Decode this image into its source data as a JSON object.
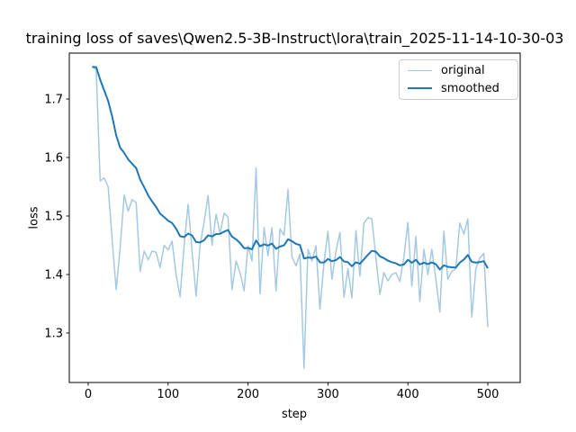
{
  "title": "training loss of saves\\Qwen2.5-3B-Instruct\\lora\\train_2025-11-14-10-30-03",
  "chart_data": {
    "type": "line",
    "title": "training loss of saves\\Qwen2.5-3B-Instruct\\lora\\train_2025-11-14-10-30-03",
    "xlabel": "step",
    "ylabel": "loss",
    "xlim": [
      -23,
      541
    ],
    "ylim": [
      1.215,
      1.778
    ],
    "x_ticks": [
      0,
      100,
      200,
      300,
      400,
      500
    ],
    "y_ticks": [
      1.3,
      1.4,
      1.5,
      1.6,
      1.7
    ],
    "grid": false,
    "legend_position": "upper right",
    "x": [
      5,
      10,
      15,
      20,
      25,
      30,
      35,
      40,
      45,
      50,
      55,
      60,
      65,
      70,
      75,
      80,
      85,
      90,
      95,
      100,
      105,
      110,
      115,
      120,
      125,
      130,
      135,
      140,
      145,
      150,
      155,
      160,
      165,
      170,
      175,
      180,
      185,
      190,
      195,
      200,
      205,
      210,
      215,
      220,
      225,
      230,
      235,
      240,
      245,
      250,
      255,
      260,
      265,
      270,
      275,
      280,
      285,
      290,
      295,
      300,
      305,
      310,
      315,
      320,
      325,
      330,
      335,
      340,
      345,
      350,
      355,
      360,
      365,
      370,
      375,
      380,
      385,
      390,
      395,
      400,
      405,
      410,
      415,
      420,
      425,
      430,
      435,
      440,
      445,
      450,
      455,
      460,
      465,
      470,
      475,
      480,
      485,
      490,
      495,
      500
    ],
    "series": [
      {
        "name": "original",
        "color": "#a5c9e1",
        "line_width": 1.5,
        "values": [
          1.755,
          1.75,
          1.56,
          1.565,
          1.55,
          1.46,
          1.374,
          1.446,
          1.536,
          1.508,
          1.528,
          1.523,
          1.405,
          1.44,
          1.425,
          1.44,
          1.438,
          1.412,
          1.45,
          1.442,
          1.457,
          1.4,
          1.362,
          1.45,
          1.52,
          1.44,
          1.363,
          1.45,
          1.49,
          1.535,
          1.45,
          1.503,
          1.47,
          1.505,
          1.498,
          1.374,
          1.423,
          1.403,
          1.372,
          1.449,
          1.423,
          1.582,
          1.367,
          1.48,
          1.432,
          1.48,
          1.372,
          1.478,
          1.467,
          1.545,
          1.43,
          1.415,
          1.435,
          1.24,
          1.443,
          1.423,
          1.449,
          1.341,
          1.42,
          1.474,
          1.392,
          1.44,
          1.472,
          1.361,
          1.41,
          1.36,
          1.475,
          1.397,
          1.488,
          1.497,
          1.495,
          1.428,
          1.366,
          1.403,
          1.389,
          1.4,
          1.403,
          1.388,
          1.43,
          1.489,
          1.38,
          1.465,
          1.354,
          1.443,
          1.4,
          1.443,
          1.392,
          1.336,
          1.474,
          1.392,
          1.405,
          1.41,
          1.488,
          1.469,
          1.495,
          1.327,
          1.41,
          1.428,
          1.436,
          1.31
        ]
      },
      {
        "name": "smoothed",
        "color": "#1f77b4",
        "line_width": 2,
        "derived_from": "original",
        "method": "exponential_moving_average",
        "smoothing_weight": 0.89
      }
    ]
  }
}
